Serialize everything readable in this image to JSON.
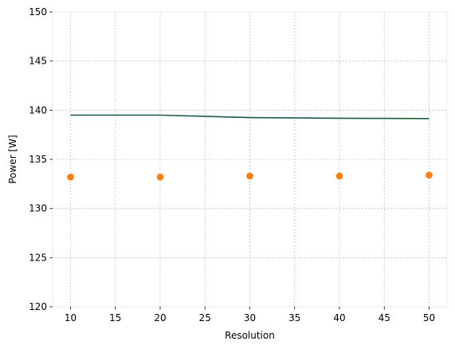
{
  "chart_data": {
    "type": "line",
    "title": "",
    "xlabel": "Resolution",
    "ylabel": "Power [W]",
    "xlim": [
      8,
      52
    ],
    "ylim": [
      120,
      150
    ],
    "xticks": [
      10,
      15,
      20,
      25,
      30,
      35,
      40,
      45,
      50
    ],
    "yticks": [
      120,
      125,
      130,
      135,
      140,
      145,
      150
    ],
    "grid": true,
    "grid_style": "dotted",
    "legend": "none",
    "series": [
      {
        "type": "line",
        "color": "#1f5c3a",
        "x": [
          10,
          20,
          30,
          40,
          50
        ],
        "y": [
          139.5,
          139.5,
          139.25,
          139.18,
          139.15
        ]
      },
      {
        "type": "scatter",
        "color": "#ff7f0e",
        "x": [
          10,
          20,
          30,
          40,
          50
        ],
        "y": [
          133.2,
          133.2,
          133.3,
          133.3,
          133.4
        ]
      }
    ]
  }
}
